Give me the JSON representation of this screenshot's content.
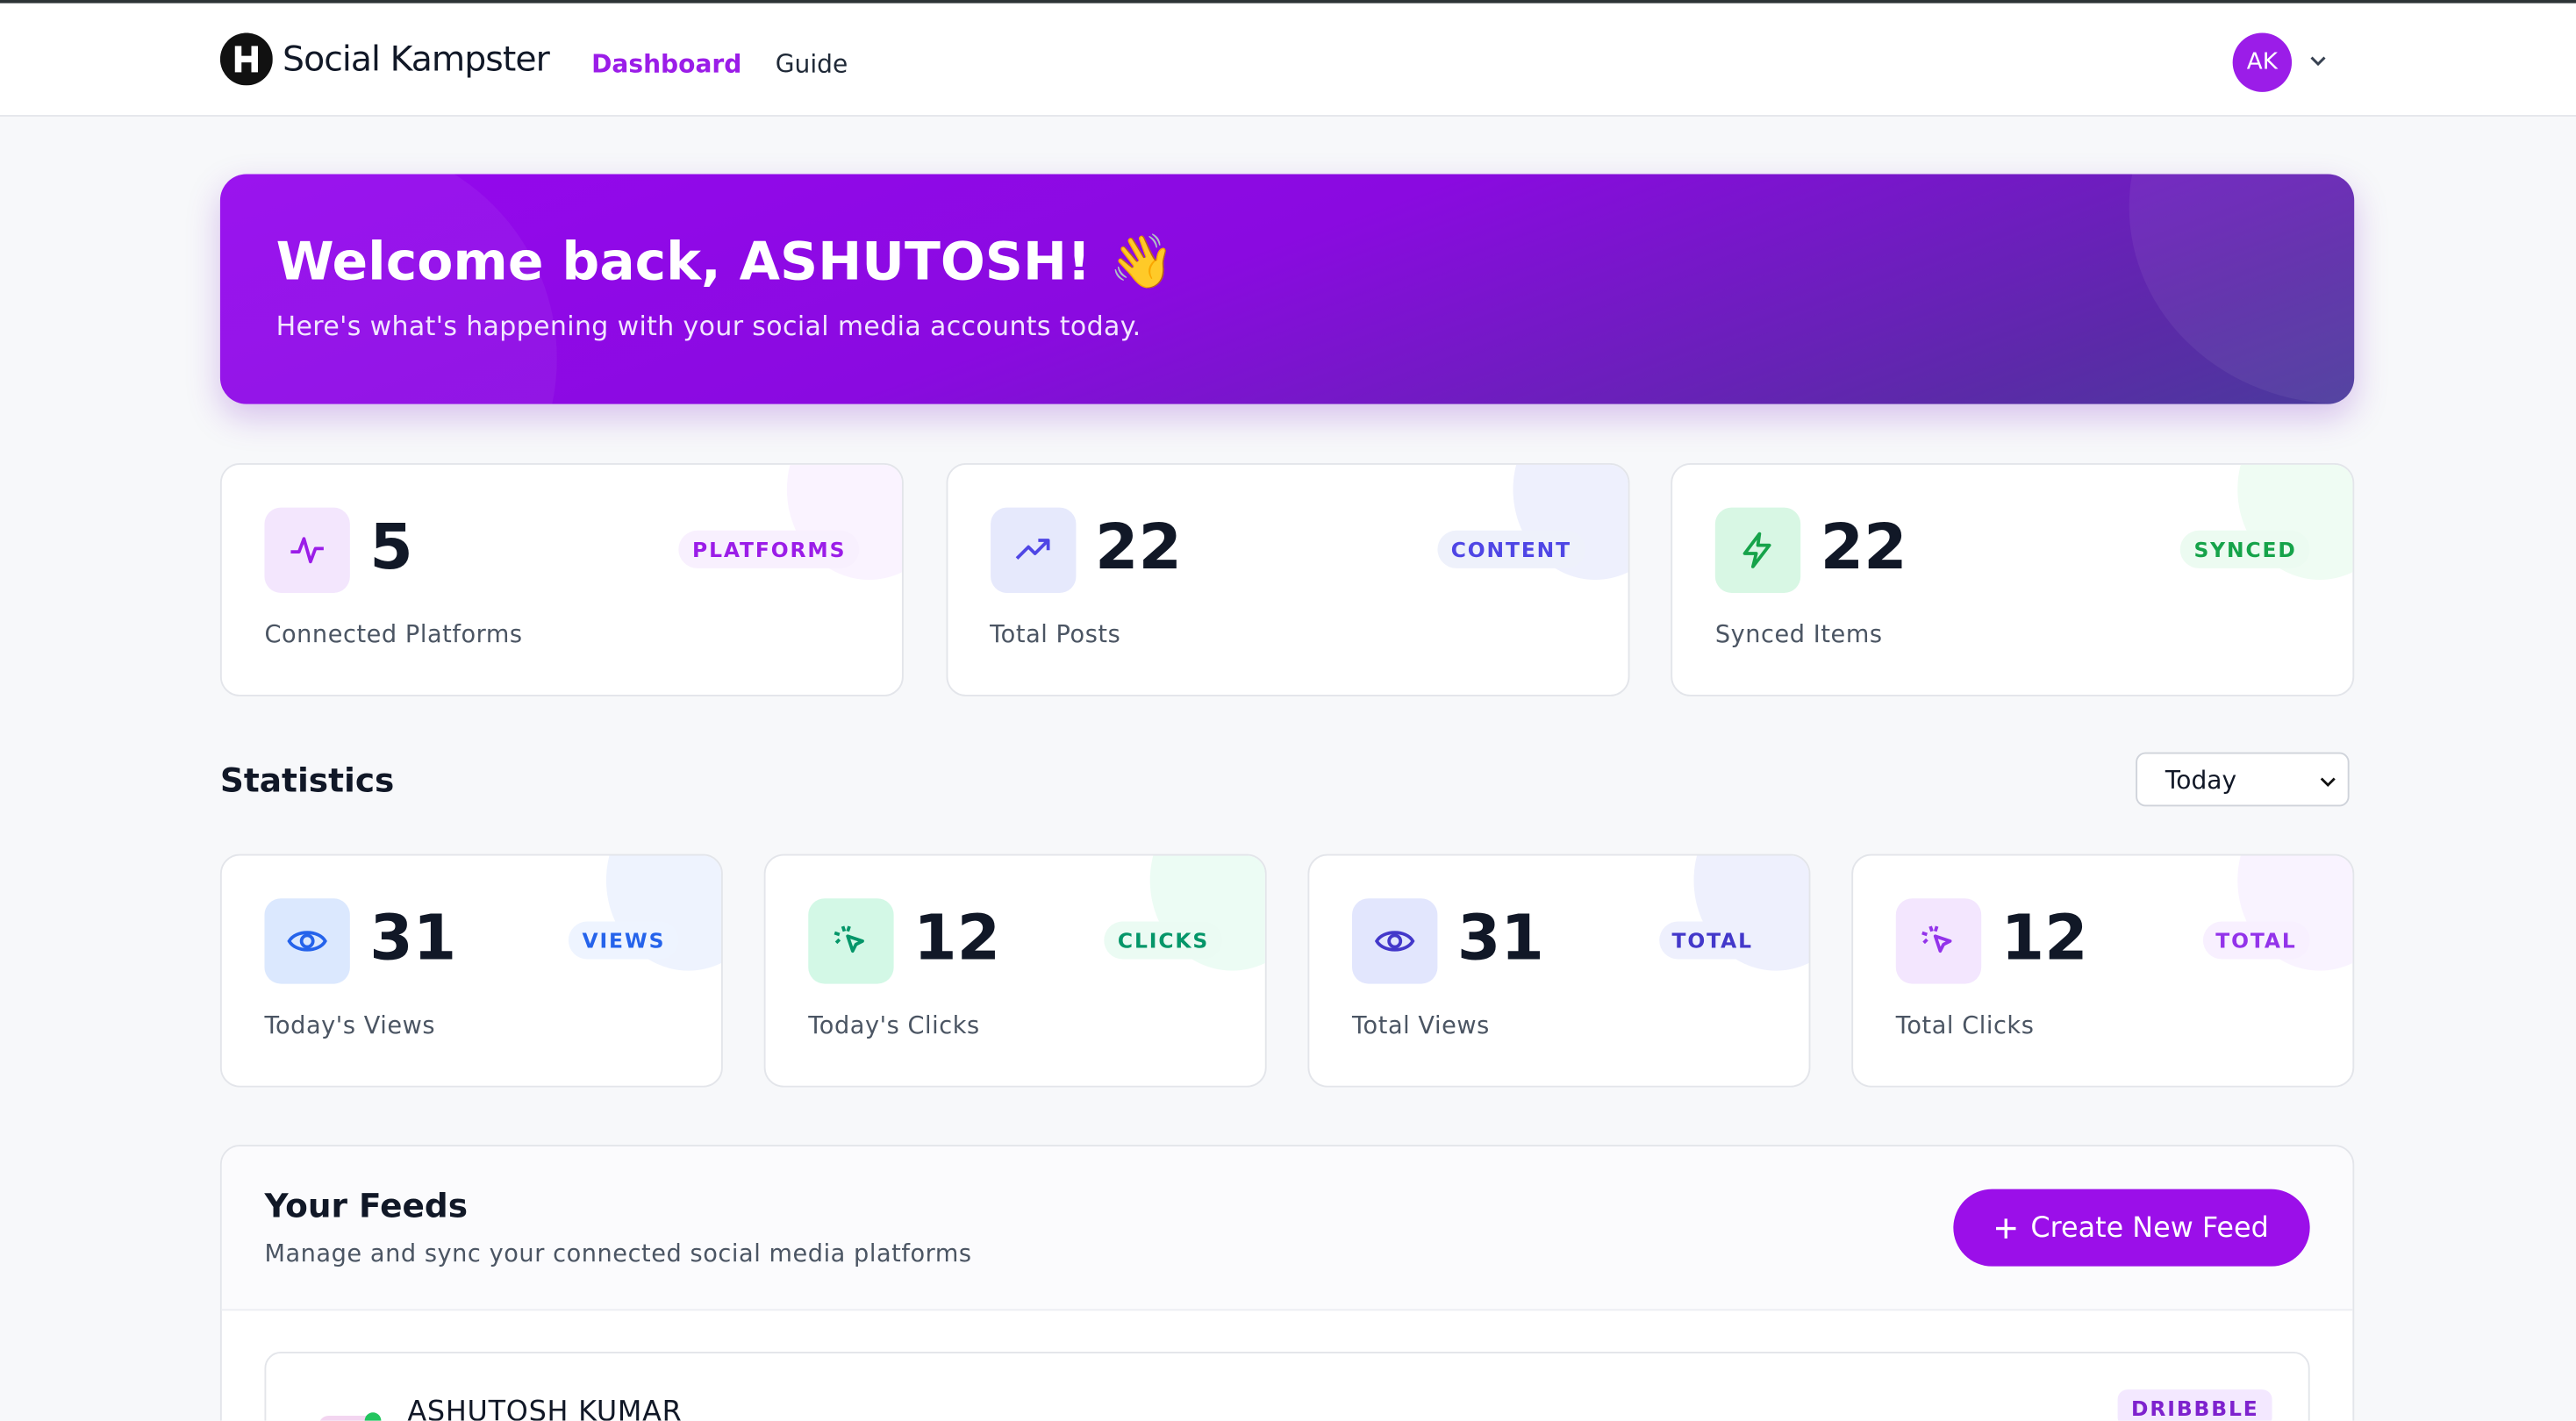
{
  "nav": {
    "logo": "Social Kampster",
    "links": [
      "Dashboard",
      "Guide"
    ],
    "avatar": "AK"
  },
  "welcome": {
    "title": "Welcome back, ASHUTOSH! 👋",
    "subtitle": "Here's what's happening with your social media accounts today."
  },
  "summary_cards": [
    {
      "value": 5,
      "badge": "PLATFORMS",
      "label": "Connected Platforms"
    },
    {
      "value": 22,
      "badge": "CONTENT",
      "label": "Total Posts"
    },
    {
      "value": 22,
      "badge": "SYNCED",
      "label": "Synced Items"
    }
  ],
  "statistics": {
    "title": "Statistics",
    "period": "Today",
    "cards": [
      {
        "value": 31,
        "badge": "VIEWS",
        "label": "Today's Views"
      },
      {
        "value": 12,
        "badge": "CLICKS",
        "label": "Today's Clicks"
      },
      {
        "value": 31,
        "badge": "TOTAL",
        "label": "Total Views"
      },
      {
        "value": 12,
        "badge": "TOTAL",
        "label": "Total Clicks"
      }
    ]
  },
  "feeds": {
    "title": "Your Feeds",
    "subtitle": "Manage and sync your connected social media platforms",
    "button": "Create New Feed",
    "items": [
      {
        "name": "ASHUTOSH KUMAR",
        "badge": "DRIBBBLE"
      }
    ]
  }
}
